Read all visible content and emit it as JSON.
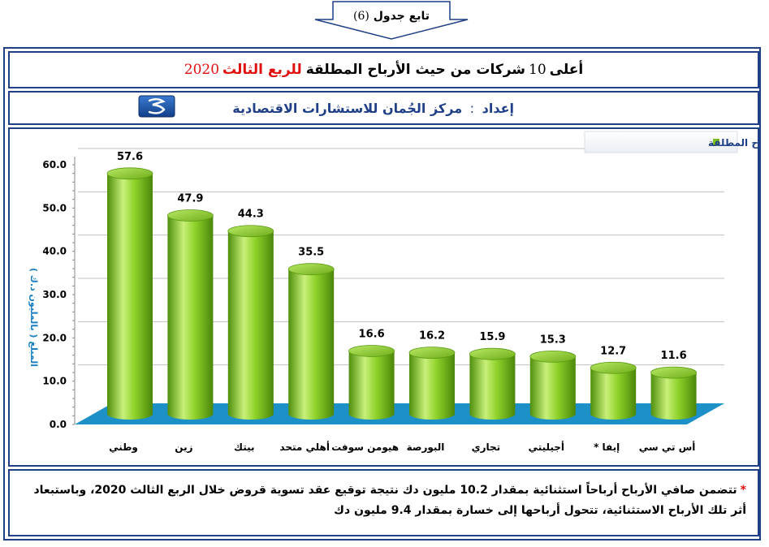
{
  "continuation_label": {
    "text": "تابع جدول",
    "number": "(6)"
  },
  "title": {
    "prefix": "أعلى",
    "count": "10",
    "middle": "شركات من حيث الأرباح المطلقة",
    "period": "للربع الثالث",
    "year": "2020"
  },
  "source": {
    "label": "إعداد",
    "separator": ":",
    "name": "مركز الجُمان للاستشارات الاقتصادية"
  },
  "chart_data": {
    "type": "bar",
    "style": "3d-cylinder",
    "categories": [
      "وطني",
      "زين",
      "بيتك",
      "أهلي متحد",
      "هيومن سوفت",
      "البورصة",
      "تجاري",
      "أجيليتي",
      "إيفا *",
      "أس تي سي"
    ],
    "series": [
      {
        "name": "الأرباح المطلقة",
        "values": [
          57.6,
          47.9,
          44.3,
          35.5,
          16.6,
          16.2,
          15.9,
          15.3,
          12.7,
          11.6
        ]
      }
    ],
    "data_labels": [
      "57.6",
      "47.9",
      "44.3",
      "35.5",
      "16.6",
      "16.2",
      "15.9",
      "15.3",
      "12.7",
      "11.6"
    ],
    "ylabel": "المبلغ ( بالمليون د.ك )",
    "ylim": [
      0,
      60
    ],
    "yticks": [
      "0.0",
      "10.0",
      "20.0",
      "30.0",
      "40.0",
      "50.0",
      "60.0"
    ],
    "legend_position": "top-right",
    "grid": true,
    "colors": {
      "bar": "#7dc21e",
      "bar_light": "#c8f07a",
      "bar_dark": "#4f8f0c",
      "floor": "#1e90c8",
      "grid": "#c0c0c0"
    }
  },
  "note": {
    "marker": "*",
    "text": "تتضمن صافي الأرباح أرباحاً استثنائية بمقدار 10.2 مليون دك نتيجة توقيع عقد تسوية قروض خلال الربع الثالث 2020، وباستبعاد أثر تلك الأرباح الاستثنائية، تتحول أرباحها إلى خسارة بمقدار 9.4 مليون دك"
  }
}
